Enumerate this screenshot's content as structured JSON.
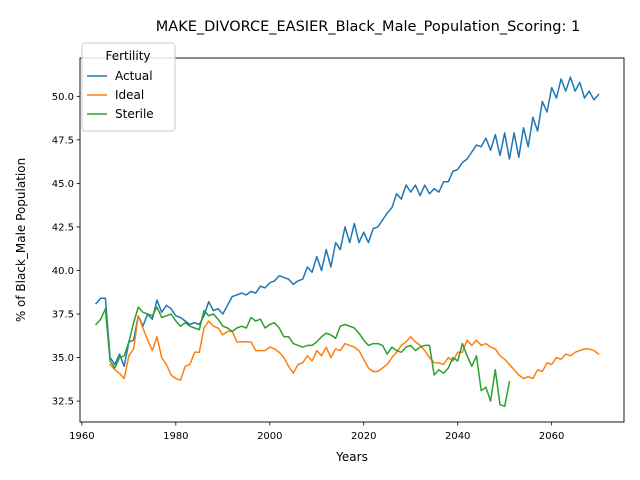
{
  "chart_data": {
    "type": "line",
    "title": "MAKE_DIVORCE_EASIER_Black_Male_Population_Scoring: 1",
    "xlabel": "Years",
    "ylabel": "% of Black_Male Population",
    "xlim": [
      1959.6,
      2075.4
    ],
    "ylim": [
      31.3,
      52.2
    ],
    "xticks": [
      1960,
      1980,
      2000,
      2020,
      2040,
      2060
    ],
    "yticks": [
      32.5,
      35.0,
      37.5,
      40.0,
      42.5,
      45.0,
      47.5,
      50.0
    ],
    "ytick_labels": [
      "32.5",
      "35.0",
      "37.5",
      "40.0",
      "42.5",
      "45.0",
      "47.5",
      "50.0"
    ],
    "grid": false,
    "legend": {
      "title": "Fertility",
      "placement": "top-left"
    },
    "series": [
      {
        "name": "Actual",
        "color": "#1f77b4",
        "x": [
          1963,
          1964,
          1965,
          1966,
          1967,
          1968,
          1969,
          1970,
          1971,
          1972,
          1973,
          1974,
          1975,
          1976,
          1977,
          1978,
          1979,
          1980,
          1981,
          1982,
          1983,
          1984,
          1985,
          1986,
          1987,
          1988,
          1989,
          1990,
          1991,
          1992,
          1993,
          1994,
          1995,
          1996,
          1997,
          1998,
          1999,
          2000,
          2001,
          2002,
          2003,
          2004,
          2005,
          2006,
          2007,
          2008,
          2009,
          2010,
          2011,
          2012,
          2013,
          2014,
          2015,
          2016,
          2017,
          2018,
          2019,
          2020,
          2021,
          2022,
          2023,
          2024,
          2025,
          2026,
          2027,
          2028,
          2029,
          2030,
          2031,
          2032,
          2033,
          2034,
          2035,
          2036,
          2037,
          2038,
          2039,
          2040,
          2041,
          2042,
          2043,
          2044,
          2045,
          2046,
          2047,
          2048,
          2049,
          2050,
          2051,
          2052,
          2053,
          2054,
          2055,
          2056,
          2057,
          2058,
          2059,
          2060,
          2061,
          2062,
          2063,
          2064,
          2065,
          2066,
          2067,
          2068,
          2069,
          2070
        ],
        "y": [
          38.1,
          38.4,
          38.4,
          35.0,
          34.6,
          35.2,
          34.5,
          35.9,
          36.0,
          37.4,
          36.8,
          37.5,
          37.2,
          38.3,
          37.6,
          38.0,
          37.8,
          37.4,
          37.3,
          37.1,
          36.9,
          37.0,
          36.9,
          37.4,
          38.2,
          37.7,
          37.8,
          37.5,
          38.0,
          38.5,
          38.6,
          38.7,
          38.6,
          38.8,
          38.7,
          39.1,
          39.0,
          39.3,
          39.4,
          39.7,
          39.6,
          39.5,
          39.2,
          39.4,
          39.5,
          40.2,
          39.9,
          40.8,
          40.0,
          41.2,
          40.2,
          41.6,
          41.2,
          42.5,
          41.6,
          42.7,
          41.6,
          42.2,
          41.6,
          42.4,
          42.5,
          42.9,
          43.3,
          43.6,
          44.4,
          44.1,
          44.9,
          44.5,
          44.9,
          44.3,
          44.9,
          44.4,
          44.7,
          44.5,
          45.1,
          45.1,
          45.7,
          45.8,
          46.2,
          46.4,
          46.8,
          47.2,
          47.1,
          47.6,
          46.9,
          47.8,
          46.6,
          47.9,
          46.4,
          47.9,
          46.5,
          48.2,
          47.1,
          48.8,
          48.0,
          49.7,
          49.1,
          50.5,
          49.9,
          51.0,
          50.3,
          51.1,
          50.3,
          50.8,
          49.9,
          50.3,
          49.8,
          50.1
        ]
      },
      {
        "name": "Ideal",
        "color": "#ff7f0e",
        "x": [
          1966,
          1967,
          1968,
          1969,
          1970,
          1971,
          1972,
          1973,
          1974,
          1975,
          1976,
          1977,
          1978,
          1979,
          1980,
          1981,
          1982,
          1983,
          1984,
          1985,
          1986,
          1987,
          1988,
          1989,
          1990,
          1991,
          1992,
          1993,
          1994,
          1995,
          1996,
          1997,
          1998,
          1999,
          2000,
          2001,
          2002,
          2003,
          2004,
          2005,
          2006,
          2007,
          2008,
          2009,
          2010,
          2011,
          2012,
          2013,
          2014,
          2015,
          2016,
          2017,
          2018,
          2019,
          2020,
          2021,
          2022,
          2023,
          2024,
          2025,
          2026,
          2027,
          2028,
          2029,
          2030,
          2031,
          2032,
          2033,
          2034,
          2035,
          2036,
          2037,
          2038,
          2039,
          2040,
          2041,
          2042,
          2043,
          2044,
          2045,
          2046,
          2047,
          2048,
          2049,
          2050,
          2051,
          2052,
          2053,
          2054,
          2055,
          2056,
          2057,
          2058,
          2059,
          2060,
          2061,
          2062,
          2063,
          2064,
          2065,
          2066,
          2067,
          2068,
          2069,
          2070
        ],
        "y": [
          34.6,
          34.3,
          34.1,
          33.8,
          35.1,
          35.5,
          37.4,
          36.7,
          36.0,
          35.4,
          36.2,
          35.0,
          34.6,
          34.0,
          33.8,
          33.7,
          34.5,
          34.6,
          35.3,
          35.3,
          36.7,
          37.1,
          36.8,
          36.7,
          36.3,
          36.5,
          36.5,
          35.9,
          35.9,
          35.9,
          35.9,
          35.4,
          35.4,
          35.4,
          35.6,
          35.5,
          35.3,
          35.0,
          34.5,
          34.1,
          34.6,
          34.7,
          35.1,
          34.8,
          35.4,
          35.1,
          35.6,
          35.0,
          35.5,
          35.4,
          35.8,
          35.7,
          35.6,
          35.4,
          34.9,
          34.4,
          34.2,
          34.2,
          34.4,
          34.6,
          35.0,
          35.3,
          35.7,
          35.9,
          36.2,
          35.9,
          35.7,
          35.4,
          35.0,
          34.7,
          34.7,
          34.6,
          35.0,
          34.8,
          35.3,
          35.3,
          36.0,
          35.7,
          36.0,
          35.7,
          35.8,
          35.6,
          35.5,
          35.1,
          34.9,
          34.6,
          34.3,
          34.0,
          33.8,
          33.9,
          33.8,
          34.3,
          34.2,
          34.7,
          34.6,
          35.0,
          34.9,
          35.2,
          35.1,
          35.3,
          35.4,
          35.5,
          35.5,
          35.4,
          35.2
        ]
      },
      {
        "name": "Sterile",
        "color": "#2ca02c",
        "x": [
          1963,
          1964,
          1965,
          1966,
          1967,
          1968,
          1969,
          1970,
          1971,
          1972,
          1973,
          1974,
          1975,
          1976,
          1977,
          1978,
          1979,
          1980,
          1981,
          1982,
          1983,
          1984,
          1985,
          1986,
          1987,
          1988,
          1989,
          1990,
          1991,
          1992,
          1993,
          1994,
          1995,
          1996,
          1997,
          1998,
          1999,
          2000,
          2001,
          2002,
          2003,
          2004,
          2005,
          2006,
          2007,
          2008,
          2009,
          2010,
          2011,
          2012,
          2013,
          2014,
          2015,
          2016,
          2017,
          2018,
          2019,
          2020,
          2021,
          2022,
          2023,
          2024,
          2025,
          2026,
          2027,
          2028,
          2029,
          2030,
          2031,
          2032,
          2033,
          2034,
          2035,
          2036,
          2037,
          2038,
          2039,
          2040,
          2041,
          2042,
          2043,
          2044,
          2045,
          2046,
          2047,
          2048,
          2049,
          2050,
          2051
        ],
        "y": [
          36.9,
          37.2,
          37.8,
          34.8,
          34.4,
          35.0,
          35.1,
          35.9,
          37.0,
          37.9,
          37.6,
          37.5,
          37.4,
          37.9,
          37.3,
          37.4,
          37.5,
          37.1,
          36.8,
          37.0,
          36.8,
          36.7,
          36.6,
          37.7,
          37.4,
          37.5,
          37.2,
          36.8,
          36.7,
          36.5,
          36.7,
          36.8,
          36.7,
          37.3,
          37.1,
          37.2,
          36.7,
          36.9,
          37.0,
          36.7,
          36.2,
          36.2,
          35.8,
          35.7,
          35.6,
          35.7,
          35.7,
          35.9,
          36.2,
          36.4,
          36.3,
          36.1,
          36.8,
          36.9,
          36.8,
          36.7,
          36.4,
          36.0,
          35.7,
          35.8,
          35.8,
          35.7,
          35.2,
          35.6,
          35.4,
          35.3,
          35.6,
          35.7,
          35.4,
          35.6,
          35.7,
          35.7,
          34.0,
          34.3,
          34.1,
          34.4,
          35.0,
          34.8,
          35.8,
          35.1,
          34.5,
          35.1,
          33.1,
          33.3,
          32.5,
          34.3,
          32.3,
          32.2,
          33.6
        ]
      }
    ]
  }
}
